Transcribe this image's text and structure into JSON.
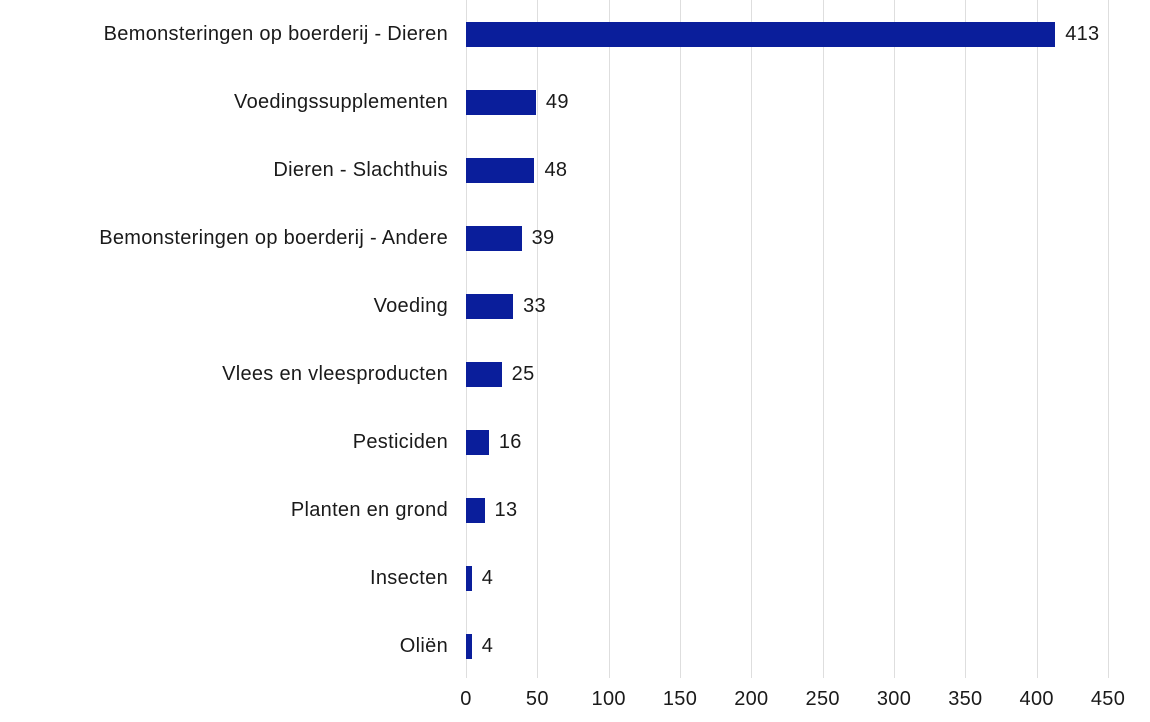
{
  "chart_data": {
    "type": "bar",
    "orientation": "horizontal",
    "title": "",
    "xlabel": "",
    "ylabel": "",
    "categories": [
      "Bemonsteringen op boerderij - Dieren",
      "Voedingssupplementen",
      "Dieren - Slachthuis",
      "Bemonsteringen op boerderij - Andere",
      "Voeding",
      "Vlees en vleesproducten",
      "Pesticiden",
      "Planten en grond",
      "Insecten",
      "Oliën"
    ],
    "values": [
      413,
      49,
      48,
      39,
      33,
      25,
      16,
      13,
      4,
      4
    ],
    "value_labels": [
      "413",
      "49",
      "48",
      "39",
      "33",
      "25",
      "16",
      "13",
      "4",
      "4"
    ],
    "xlim": [
      0,
      450
    ],
    "x_ticks": [
      0,
      50,
      100,
      150,
      200,
      250,
      300,
      350,
      400,
      450
    ],
    "x_tick_labels": [
      "0",
      "50",
      "100",
      "150",
      "200",
      "250",
      "300",
      "350",
      "400",
      "450"
    ],
    "grid": "vertical",
    "legend": "none",
    "colors": {
      "bar": "#0A1E9B",
      "gridline": "#dedede",
      "text": "#1a1a1a",
      "background": "#ffffff"
    }
  }
}
